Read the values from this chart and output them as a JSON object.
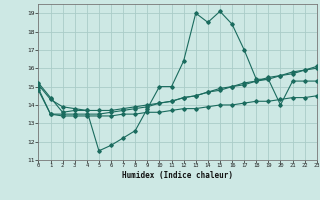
{
  "xlabel": "Humidex (Indice chaleur)",
  "x_ticks": [
    0,
    1,
    2,
    3,
    4,
    5,
    6,
    7,
    8,
    9,
    10,
    11,
    12,
    13,
    14,
    15,
    16,
    17,
    18,
    19,
    20,
    21,
    22,
    23
  ],
  "ylim": [
    11,
    19.5
  ],
  "xlim": [
    0,
    23
  ],
  "y_ticks": [
    11,
    12,
    13,
    14,
    15,
    16,
    17,
    18,
    19
  ],
  "background_color": "#cde8e4",
  "grid_color": "#aaccc8",
  "line_color": "#1a6b5e",
  "series1_y": [
    15.2,
    14.4,
    13.6,
    13.7,
    13.7,
    11.5,
    11.8,
    12.2,
    12.6,
    13.8,
    15.0,
    15.0,
    16.4,
    19.0,
    18.5,
    19.1,
    18.4,
    17.0,
    15.4,
    15.4,
    14.0,
    15.3,
    15.3,
    15.3
  ],
  "series2_y": [
    14.8,
    13.5,
    13.5,
    13.5,
    13.5,
    13.5,
    13.6,
    13.7,
    13.8,
    13.9,
    14.1,
    14.2,
    14.4,
    14.5,
    14.7,
    14.9,
    15.0,
    15.2,
    15.3,
    15.5,
    15.6,
    15.8,
    15.9,
    16.1
  ],
  "series3_y": [
    14.9,
    13.5,
    13.4,
    13.4,
    13.4,
    13.4,
    13.4,
    13.5,
    13.5,
    13.6,
    13.6,
    13.7,
    13.8,
    13.8,
    13.9,
    14.0,
    14.0,
    14.1,
    14.2,
    14.2,
    14.3,
    14.4,
    14.4,
    14.5
  ],
  "series4_y": [
    15.1,
    14.3,
    13.9,
    13.8,
    13.7,
    13.7,
    13.7,
    13.8,
    13.9,
    14.0,
    14.1,
    14.2,
    14.4,
    14.5,
    14.7,
    14.8,
    15.0,
    15.1,
    15.3,
    15.4,
    15.6,
    15.7,
    15.9,
    16.0
  ]
}
